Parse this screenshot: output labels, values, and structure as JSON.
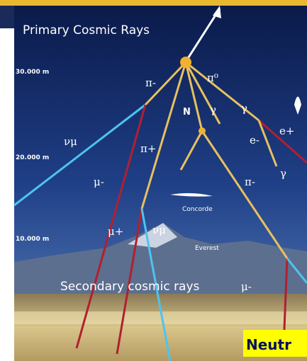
{
  "title": "Primary Cosmic Rays",
  "altitudes": [
    "30.000 m",
    "20.000 m",
    "10.000 m"
  ],
  "particles": [
    "π-",
    "π⁰",
    "N",
    "γ",
    "γ",
    "e-",
    "e+",
    "νμ",
    "π+",
    "μ-",
    "π-",
    "γ",
    "μ+",
    "νμ",
    "μ-"
  ],
  "landmarks": [
    "Concorde",
    "Everest"
  ],
  "caption": "Secondary cosmic rays",
  "highlight": "Neutr"
}
